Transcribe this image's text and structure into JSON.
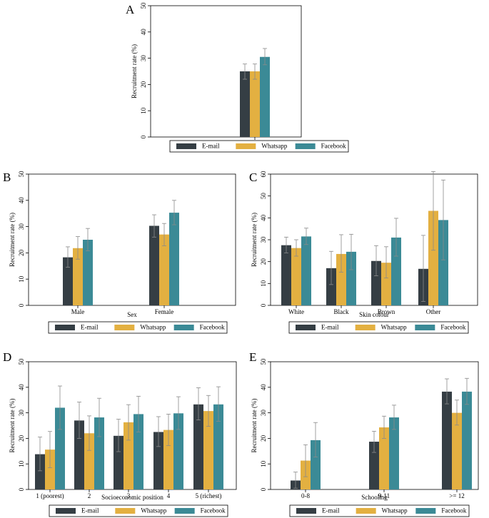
{
  "colors": {
    "email": "#353e44",
    "whatsapp": "#e3b041",
    "facebook": "#3b8a96",
    "errorbar": "#8a8a8a",
    "frame": "#000000"
  },
  "legend_labels": [
    "E-mail",
    "Whatsapp",
    "Facebook"
  ],
  "chart_data": [
    {
      "id": "A",
      "type": "bar",
      "panel_label": "A",
      "title": "",
      "xlabel": "",
      "ylabel": "Recruitment rate (%)",
      "ylim": [
        0,
        50
      ],
      "yticks": [
        "0",
        "10",
        "20",
        "30",
        "40",
        "50"
      ],
      "categories": [
        ""
      ],
      "series": [
        {
          "name": "E-mail",
          "values": [
            25
          ],
          "err_low": [
            22
          ],
          "err_high": [
            27.8
          ]
        },
        {
          "name": "Whatsapp",
          "values": [
            25
          ],
          "err_low": [
            22
          ],
          "err_high": [
            27.8
          ]
        },
        {
          "name": "Facebook",
          "values": [
            30.5
          ],
          "err_low": [
            27.5
          ],
          "err_high": [
            33.7
          ]
        }
      ]
    },
    {
      "id": "B",
      "type": "bar",
      "panel_label": "B",
      "title": "",
      "xlabel": "Sex",
      "ylabel": "Recruitment rate (%)",
      "ylim": [
        0,
        50
      ],
      "yticks": [
        "0",
        "10",
        "20",
        "30",
        "40",
        "50"
      ],
      "categories": [
        "Male",
        "Female"
      ],
      "series": [
        {
          "name": "E-mail",
          "values": [
            18.3,
            30.3
          ],
          "err_low": [
            14.5,
            26
          ],
          "err_high": [
            22.3,
            34.5
          ]
        },
        {
          "name": "Whatsapp",
          "values": [
            21.8,
            27
          ],
          "err_low": [
            17.6,
            22.7
          ],
          "err_high": [
            26.2,
            31.2
          ]
        },
        {
          "name": "Facebook",
          "values": [
            25,
            35.3
          ],
          "err_low": [
            20.8,
            30.7
          ],
          "err_high": [
            29.3,
            40
          ]
        }
      ]
    },
    {
      "id": "C",
      "type": "bar",
      "panel_label": "C",
      "title": "",
      "xlabel": "Skin colour",
      "ylabel": "Recruitment rate (%)",
      "ylim": [
        0,
        60
      ],
      "yticks": [
        "0",
        "10",
        "20",
        "30",
        "40",
        "50",
        "60"
      ],
      "categories": [
        "White",
        "Black",
        "Brown",
        "Other"
      ],
      "series": [
        {
          "name": "E-mail",
          "values": [
            27.5,
            17,
            20.3,
            16.7
          ],
          "err_low": [
            24,
            9.5,
            13.5,
            1.8
          ],
          "err_high": [
            31.2,
            24.7,
            27.3,
            32
          ]
        },
        {
          "name": "Whatsapp",
          "values": [
            26.2,
            23.5,
            19.5,
            43.2
          ],
          "err_low": [
            22.5,
            15.2,
            12.5,
            25.2
          ],
          "err_high": [
            30,
            32.3,
            26.8,
            61.2
          ]
        },
        {
          "name": "Facebook",
          "values": [
            31.5,
            24.5,
            31,
            39
          ],
          "err_low": [
            27.8,
            16.3,
            22.5,
            20.8
          ],
          "err_high": [
            35.3,
            32.5,
            39.8,
            57.3
          ]
        }
      ]
    },
    {
      "id": "D",
      "type": "bar",
      "panel_label": "D",
      "title": "",
      "xlabel": "Socioeconomic position",
      "ylabel": "Recruitment rate (%)",
      "ylim": [
        0,
        50
      ],
      "yticks": [
        "0",
        "10",
        "20",
        "30",
        "40",
        "50"
      ],
      "categories": [
        "1 (poorest)",
        "2",
        "3",
        "4",
        "5 (richest)"
      ],
      "series": [
        {
          "name": "E-mail",
          "values": [
            13.8,
            27,
            21,
            22.5,
            33.3
          ],
          "err_low": [
            7.3,
            20,
            14.8,
            16.8,
            27.2
          ],
          "err_high": [
            20.5,
            34.2,
            27.5,
            28.5,
            39.8
          ]
        },
        {
          "name": "Whatsapp",
          "values": [
            15.6,
            22,
            26.3,
            23.3,
            30.7
          ],
          "err_low": [
            8.5,
            15.3,
            19.3,
            17.2,
            24.7
          ],
          "err_high": [
            22.7,
            28.8,
            33.2,
            29.5,
            36.8
          ]
        },
        {
          "name": "Facebook",
          "values": [
            32,
            28.2,
            29.5,
            29.8,
            33.3
          ],
          "err_low": [
            23.5,
            20.7,
            22.5,
            23.5,
            26.7
          ],
          "err_high": [
            40.5,
            35.7,
            36.5,
            36.3,
            40.2
          ]
        }
      ]
    },
    {
      "id": "E",
      "type": "bar",
      "panel_label": "E",
      "title": "",
      "xlabel": "Schooling",
      "ylabel": "Recruitment rate (%)",
      "ylim": [
        0,
        50
      ],
      "yticks": [
        "0",
        "10",
        "20",
        "30",
        "40",
        "50"
      ],
      "categories": [
        "0-8",
        "9-11",
        ">= 12"
      ],
      "series": [
        {
          "name": "E-mail",
          "values": [
            3.5,
            18.7,
            38.3
          ],
          "err_low": [
            0.5,
            14.5,
            33.5
          ],
          "err_high": [
            6.8,
            22.8,
            43.3
          ]
        },
        {
          "name": "Whatsapp",
          "values": [
            11.3,
            24.3,
            30
          ],
          "err_low": [
            5,
            20,
            25.2
          ],
          "err_high": [
            17.5,
            28.7,
            35
          ]
        },
        {
          "name": "Facebook",
          "values": [
            19.3,
            28.2,
            38.3
          ],
          "err_low": [
            12.7,
            23.5,
            33.3
          ],
          "err_high": [
            26.2,
            33,
            43.5
          ]
        }
      ]
    }
  ]
}
